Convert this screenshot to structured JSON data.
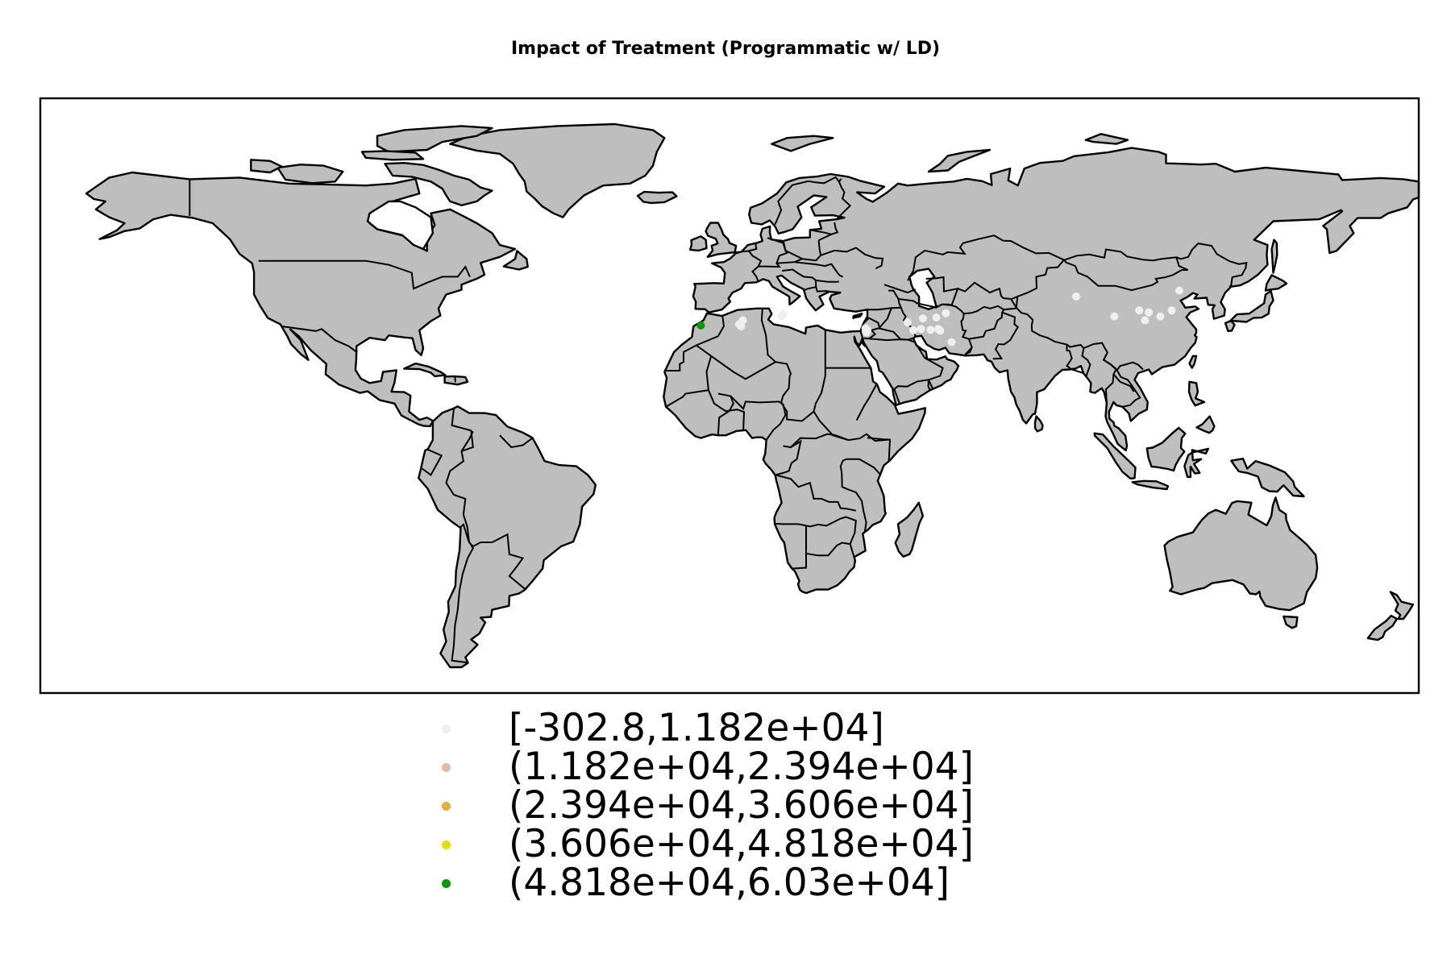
{
  "title": "Impact of Treatment (Programmatic w/ LD)",
  "map": {
    "projection": "equirectangular",
    "lon_range": [
      -180,
      180
    ],
    "lat_range": [
      -60,
      90
    ],
    "land_color": "#bebebe",
    "border_color": "#000000",
    "ocean_color": "#ffffff"
  },
  "legend": {
    "items": [
      {
        "label": "[-302.8,1.182e+04]",
        "color": "#efefef"
      },
      {
        "label": "(1.182e+04,2.394e+04]",
        "color": "#e3b9a3"
      },
      {
        "label": "(2.394e+04,3.606e+04]",
        "color": "#e9ac3f"
      },
      {
        "label": "(3.606e+04,4.818e+04]",
        "color": "#e3e000"
      },
      {
        "label": "(4.818e+04,6.03e+04]",
        "color": "#049a04"
      }
    ]
  },
  "points": [
    {
      "lon": -7.5,
      "lat": 32.7,
      "bin": 4
    },
    {
      "lon": 3.5,
      "lat": 34.0,
      "bin": 0
    },
    {
      "lon": 2.5,
      "lat": 33.0,
      "bin": 0
    },
    {
      "lon": 3.0,
      "lat": 32.5,
      "bin": 0
    },
    {
      "lon": 14.0,
      "lat": 35.5,
      "bin": 0
    },
    {
      "lon": 13.5,
      "lat": 35.0,
      "bin": 0
    },
    {
      "lon": 35.5,
      "lat": 32.0,
      "bin": 0
    },
    {
      "lon": 36.0,
      "lat": 31.5,
      "bin": 0
    },
    {
      "lon": 35.8,
      "lat": 31.0,
      "bin": 0
    },
    {
      "lon": 46.5,
      "lat": 33.5,
      "bin": 0
    },
    {
      "lon": 48.0,
      "lat": 31.5,
      "bin": 0
    },
    {
      "lon": 50.5,
      "lat": 34.5,
      "bin": 0
    },
    {
      "lon": 50.0,
      "lat": 31.8,
      "bin": 0
    },
    {
      "lon": 52.5,
      "lat": 31.6,
      "bin": 0
    },
    {
      "lon": 54.0,
      "lat": 34.7,
      "bin": 0
    },
    {
      "lon": 54.5,
      "lat": 31.8,
      "bin": 0
    },
    {
      "lon": 55.0,
      "lat": 31.4,
      "bin": 0
    },
    {
      "lon": 56.5,
      "lat": 35.8,
      "bin": 0
    },
    {
      "lon": 58.0,
      "lat": 28.5,
      "bin": 0
    },
    {
      "lon": 90.5,
      "lat": 40.0,
      "bin": 0
    },
    {
      "lon": 100.5,
      "lat": 35.0,
      "bin": 0
    },
    {
      "lon": 107.0,
      "lat": 36.5,
      "bin": 0
    },
    {
      "lon": 109.5,
      "lat": 36.0,
      "bin": 0
    },
    {
      "lon": 108.5,
      "lat": 34.0,
      "bin": 0
    },
    {
      "lon": 112.5,
      "lat": 35.0,
      "bin": 0
    },
    {
      "lon": 115.5,
      "lat": 36.5,
      "bin": 0
    },
    {
      "lon": 117.5,
      "lat": 41.5,
      "bin": 0
    }
  ]
}
